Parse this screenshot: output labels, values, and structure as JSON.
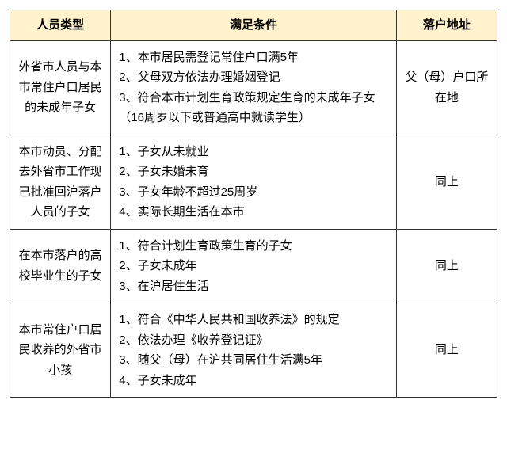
{
  "headers": {
    "type": "人员类型",
    "condition": "满足条件",
    "address": "落户地址"
  },
  "rows": [
    {
      "type": "外省市人员与本市常住户口居民的未成年子女",
      "conditions": [
        "1、本市居民需登记常住户口满5年",
        "2、父母双方依法办理婚姻登记",
        "3、符合本市计划生育政策规定生育的未成年子女（16周岁以下或普通高中就读学生）"
      ],
      "address": "父（母）户口所在地"
    },
    {
      "type": "本市动员、分配去外省市工作现已批准回沪落户人员的子女",
      "conditions": [
        "1、子女从未就业",
        "2、子女未婚未育",
        "3、子女年龄不超过25周岁",
        "4、实际长期生活在本市"
      ],
      "address": "同上"
    },
    {
      "type": "在本市落户的高校毕业生的子女",
      "conditions": [
        "1、符合计划生育政策生育的子女",
        "2、子女未成年",
        "3、在沪居住生活"
      ],
      "address": "同上"
    },
    {
      "type": "本市常住户口居民收养的外省市小孩",
      "conditions": [
        "1、符合《中华人民共和国收养法》的规定",
        "2、依法办理《收养登记证》",
        "3、随父（母）在沪共同居住生活满5年",
        "4、子女未成年"
      ],
      "address": "同上"
    }
  ],
  "colors": {
    "header_bg": "#fff2cc",
    "border": "#333333",
    "text": "#000000"
  }
}
